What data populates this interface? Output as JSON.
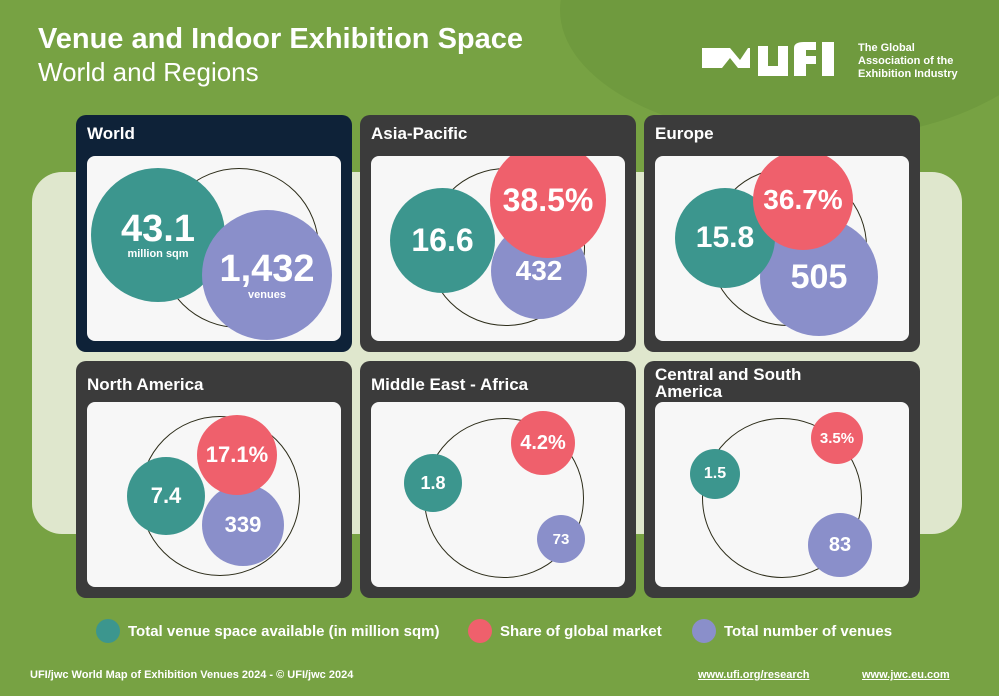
{
  "header": {
    "title": "Venue and Indoor Exhibition Space",
    "subtitle": "World and Regions"
  },
  "logo": {
    "wordmark": "ufi",
    "tagline": "The Global Association of the Exhibition Industry"
  },
  "regions": {
    "world": {
      "name": "World",
      "space": "43.1",
      "space_unit": "million sqm",
      "venues": "1,432",
      "venues_unit": "venues"
    },
    "asia_pacific": {
      "name": "Asia-Pacific",
      "space": "16.6",
      "share": "38.5%",
      "venues": "432"
    },
    "europe": {
      "name": "Europe",
      "space": "15.8",
      "share": "36.7%",
      "venues": "505"
    },
    "north_america": {
      "name": "North America",
      "space": "7.4",
      "share": "17.1%",
      "venues": "339"
    },
    "middle_east_africa": {
      "name": "Middle East - Africa",
      "space": "1.8",
      "share": "4.2%",
      "venues": "73"
    },
    "central_south_america": {
      "name": "Central and South America",
      "space": "1.5",
      "share": "3.5%",
      "venues": "83"
    }
  },
  "legend": {
    "space": "Total venue space available (in million sqm)",
    "share": "Share of global market",
    "venues": "Total number of venues"
  },
  "colors": {
    "space": "#3c968e",
    "share": "#ef606c",
    "venues": "#8a8fca",
    "background": "#77a243",
    "world_card": "#0e2238"
  },
  "footer": {
    "credit": "UFI/jwc World Map of Exhibition Venues 2024 - © UFI/jwc 2024",
    "link_ufi": "www.ufi.org/research",
    "link_jwc": "www.jwc.eu.com"
  }
}
